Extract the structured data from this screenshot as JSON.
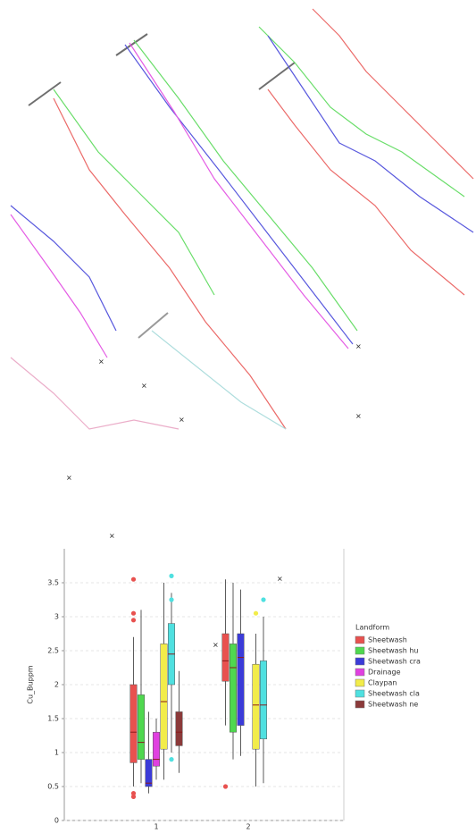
{
  "chart_data": {
    "type": "box",
    "y_label": "Cu_Buppm",
    "categories": [
      "1",
      "2"
    ],
    "ylim": [
      0,
      4
    ],
    "yticks": [
      0,
      0.5,
      1,
      1.5,
      2,
      2.5,
      3,
      3.5
    ],
    "grid": true,
    "legend_title": "Landform",
    "legend_position": "right",
    "series": [
      {
        "name": "Sheetwash",
        "color": "#e8514f",
        "whisker_low": [
          0.5,
          1.4
        ],
        "q1": [
          0.85,
          2.05
        ],
        "median": [
          1.3,
          2.35
        ],
        "q3": [
          2.0,
          2.75
        ],
        "whisker_high": [
          2.7,
          3.55
        ],
        "outliers": [
          [
            3.55,
            3.05,
            2.95,
            0.4,
            0.35
          ],
          [
            0.5
          ]
        ]
      },
      {
        "name": "Sheetwash hu",
        "color": "#4fd84f",
        "whisker_low": [
          0.55,
          0.9
        ],
        "q1": [
          0.9,
          1.3
        ],
        "median": [
          1.15,
          2.25
        ],
        "q3": [
          1.85,
          2.6
        ],
        "whisker_high": [
          3.1,
          3.5
        ],
        "outliers": [
          [],
          []
        ]
      },
      {
        "name": "Sheetwash cra",
        "color": "#3b3bd8",
        "whisker_low": [
          0.4,
          0.95
        ],
        "q1": [
          0.5,
          1.4
        ],
        "median": [
          0.55,
          2.4
        ],
        "q3": [
          0.9,
          2.75
        ],
        "whisker_high": [
          1.6,
          3.4
        ],
        "outliers": [
          [],
          []
        ]
      },
      {
        "name": "Drainage",
        "color": "#e040e0",
        "whisker_low": [
          0.6,
          null
        ],
        "q1": [
          0.8,
          null
        ],
        "median": [
          0.9,
          null
        ],
        "q3": [
          1.3,
          null
        ],
        "whisker_high": [
          1.5,
          null
        ],
        "outliers": [
          [],
          []
        ]
      },
      {
        "name": "Claypan",
        "color": "#f2ec4a",
        "whisker_low": [
          0.6,
          0.5
        ],
        "q1": [
          1.05,
          1.05
        ],
        "median": [
          1.75,
          1.7
        ],
        "q3": [
          2.6,
          2.3
        ],
        "whisker_high": [
          3.5,
          2.75
        ],
        "outliers": [
          [],
          [
            3.05
          ]
        ]
      },
      {
        "name": "Sheetwash cla",
        "color": "#4fe0e0",
        "whisker_low": [
          1.0,
          0.55
        ],
        "q1": [
          2.0,
          1.2
        ],
        "median": [
          2.45,
          1.7
        ],
        "q3": [
          2.9,
          2.35
        ],
        "whisker_high": [
          3.35,
          3.0
        ],
        "outliers": [
          [
            3.6,
            3.25,
            0.9
          ],
          [
            3.25
          ]
        ]
      },
      {
        "name": "Sheetwash ne",
        "color": "#8b3a3a",
        "whisker_low": [
          0.7,
          null
        ],
        "q1": [
          1.1,
          null
        ],
        "median": [
          1.3,
          null
        ],
        "q3": [
          1.6,
          null
        ],
        "whisker_high": [
          2.2,
          null
        ],
        "outliers": [
          [],
          []
        ]
      }
    ]
  }
}
